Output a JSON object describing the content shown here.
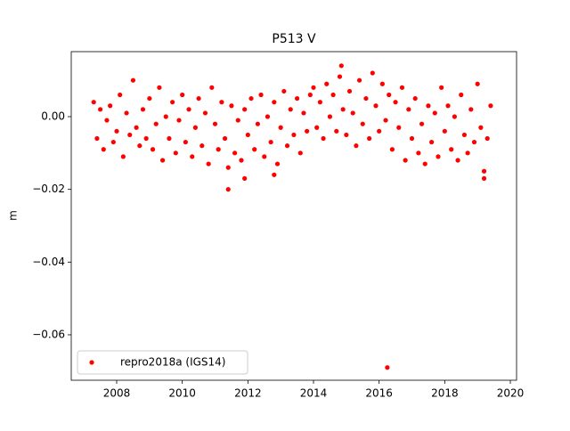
{
  "chart_data": {
    "type": "scatter",
    "title": "P513 V",
    "y_label": "m",
    "xlim": [
      2006.615,
      2020.19
    ],
    "ylim": [
      -0.0725,
      0.01788
    ],
    "xticks": [
      2008,
      2010,
      2012,
      2014,
      2016,
      2018,
      2020
    ],
    "yticks": [
      {
        "value": 0,
        "label": "0.00"
      },
      {
        "value": -0.02,
        "label": "−0.02"
      },
      {
        "value": -0.04,
        "label": "−0.04"
      },
      {
        "value": -0.06,
        "label": "−0.06"
      }
    ],
    "legend": "lower left",
    "grid": false,
    "series": [
      {
        "name": "repro2018a (IGS14)",
        "color": "#ff0000",
        "x": [
          2007.3,
          2007.4,
          2007.5,
          2007.6,
          2007.7,
          2007.8,
          2007.9,
          2008.0,
          2008.1,
          2008.2,
          2008.3,
          2008.4,
          2008.5,
          2008.6,
          2008.7,
          2008.8,
          2008.9,
          2009.0,
          2009.1,
          2009.2,
          2009.3,
          2009.4,
          2009.5,
          2009.6,
          2009.7,
          2009.8,
          2009.9,
          2010.0,
          2010.1,
          2010.2,
          2010.3,
          2010.4,
          2010.5,
          2010.6,
          2010.7,
          2010.8,
          2010.9,
          2011.0,
          2011.1,
          2011.2,
          2011.3,
          2011.4,
          2011.5,
          2011.6,
          2011.7,
          2011.8,
          2011.9,
          2012.0,
          2012.1,
          2012.2,
          2012.3,
          2012.4,
          2012.5,
          2012.6,
          2012.7,
          2012.8,
          2012.9,
          2013.0,
          2013.1,
          2013.2,
          2013.3,
          2013.4,
          2013.5,
          2013.6,
          2013.7,
          2013.8,
          2013.9,
          2014.0,
          2014.1,
          2014.2,
          2014.3,
          2014.4,
          2014.5,
          2014.6,
          2014.7,
          2014.8,
          2014.9,
          2015.0,
          2015.1,
          2015.2,
          2015.3,
          2015.4,
          2015.5,
          2015.6,
          2015.7,
          2015.8,
          2015.9,
          2016.0,
          2016.1,
          2016.2,
          2016.3,
          2016.4,
          2016.5,
          2016.6,
          2016.7,
          2016.8,
          2016.9,
          2017.0,
          2017.1,
          2017.2,
          2017.3,
          2017.4,
          2017.5,
          2017.6,
          2017.7,
          2017.8,
          2017.9,
          2018.0,
          2018.1,
          2018.2,
          2018.3,
          2018.4,
          2018.5,
          2018.6,
          2018.7,
          2018.8,
          2018.9,
          2019.0,
          2019.1,
          2019.2,
          2019.3,
          2019.4,
          2011.4,
          2011.9,
          2012.8,
          2014.85,
          2016.25,
          2019.2
        ],
        "values": [
          0.004,
          -0.006,
          0.002,
          -0.009,
          -0.001,
          0.003,
          -0.007,
          -0.004,
          0.006,
          -0.011,
          0.001,
          -0.005,
          0.01,
          -0.003,
          -0.008,
          0.002,
          -0.006,
          0.005,
          -0.009,
          -0.002,
          0.008,
          -0.012,
          0.0,
          -0.006,
          0.004,
          -0.01,
          -0.001,
          0.006,
          -0.007,
          0.002,
          -0.011,
          -0.003,
          0.005,
          -0.008,
          0.001,
          -0.013,
          0.008,
          -0.002,
          -0.009,
          0.004,
          -0.006,
          -0.014,
          0.003,
          -0.01,
          -0.001,
          -0.012,
          0.002,
          -0.005,
          0.005,
          -0.009,
          -0.002,
          0.006,
          -0.011,
          0.0,
          -0.007,
          0.004,
          -0.013,
          -0.003,
          0.007,
          -0.008,
          0.002,
          -0.005,
          0.005,
          -0.01,
          0.001,
          -0.004,
          0.006,
          0.008,
          -0.003,
          0.004,
          -0.006,
          0.009,
          0.0,
          0.006,
          -0.004,
          0.011,
          0.002,
          -0.005,
          0.007,
          0.001,
          -0.008,
          0.01,
          -0.002,
          0.005,
          -0.006,
          0.012,
          0.003,
          -0.004,
          0.009,
          -0.001,
          0.006,
          -0.009,
          0.004,
          -0.003,
          0.008,
          -0.012,
          0.002,
          -0.006,
          0.005,
          -0.01,
          -0.002,
          -0.013,
          0.003,
          -0.007,
          0.001,
          -0.011,
          0.008,
          -0.004,
          0.003,
          -0.009,
          0.0,
          -0.012,
          0.006,
          -0.005,
          -0.01,
          0.002,
          -0.007,
          0.009,
          -0.003,
          -0.015,
          -0.006,
          0.003,
          -0.02,
          -0.017,
          -0.016,
          0.014,
          -0.069,
          -0.017
        ]
      }
    ]
  }
}
